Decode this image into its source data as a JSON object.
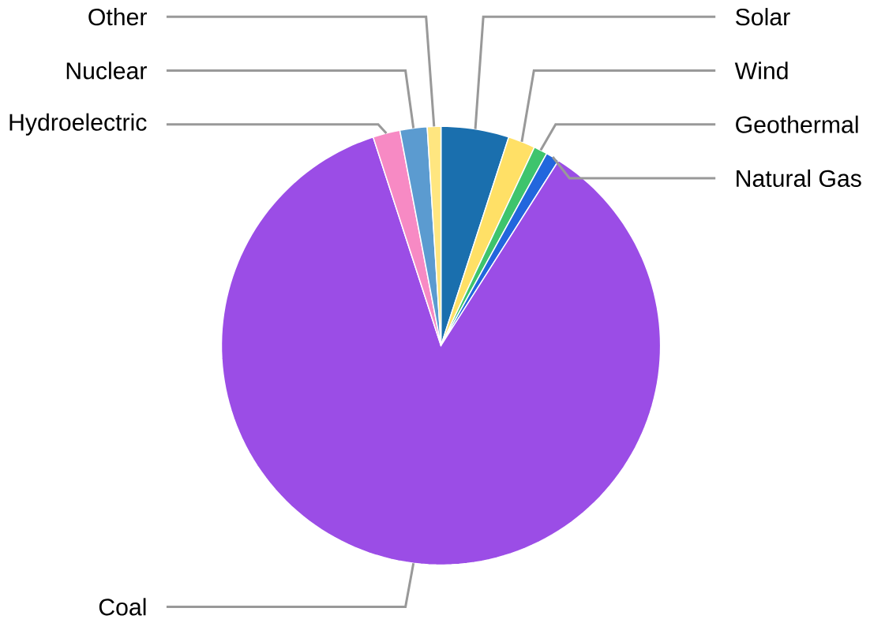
{
  "chart_data": {
    "type": "pie",
    "categories": [
      "Solar",
      "Wind",
      "Geothermal",
      "Natural Gas",
      "Coal",
      "Hydroelectric",
      "Nuclear",
      "Other"
    ],
    "values": [
      5,
      2,
      1,
      1,
      86,
      2,
      2,
      1
    ],
    "colors": [
      "#1a6fae",
      "#ffe066",
      "#3ec46d",
      "#2266dd",
      "#9b4de6",
      "#f78ac4",
      "#5b9bd0",
      "#ffe680"
    ]
  }
}
